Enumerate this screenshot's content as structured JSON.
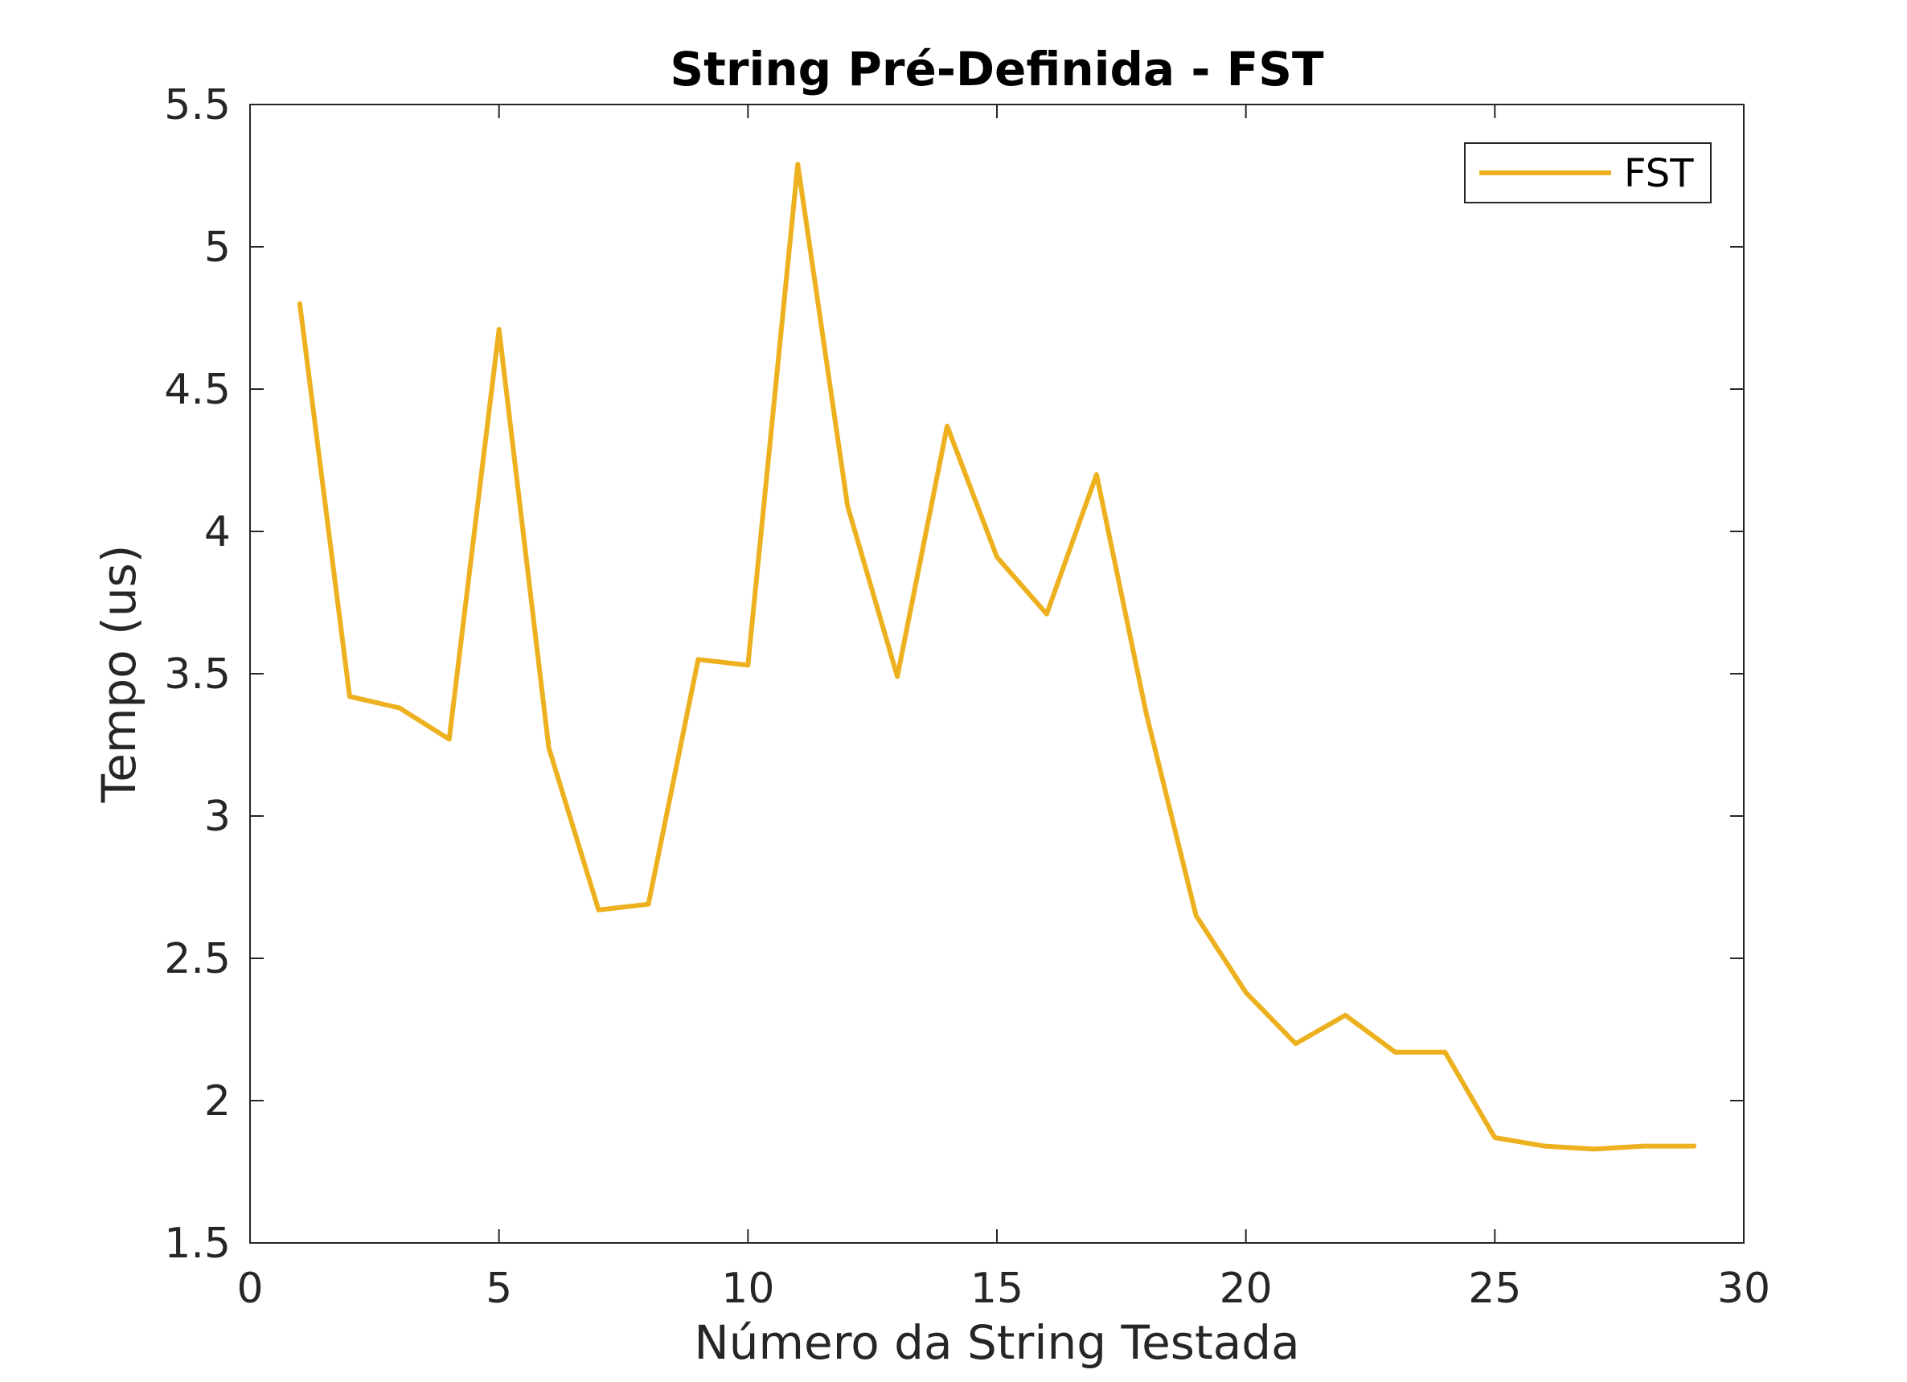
{
  "chart_data": {
    "type": "line",
    "title": "String Pré-Definida - FST",
    "xlabel": "Número da String Testada",
    "ylabel": "Tempo (us)",
    "xlim": [
      0,
      30
    ],
    "ylim": [
      1.5,
      5.5
    ],
    "xticks": [
      0,
      5,
      10,
      15,
      20,
      25,
      30
    ],
    "xtick_labels": [
      "0",
      "5",
      "10",
      "15",
      "20",
      "25",
      "30"
    ],
    "yticks": [
      1.5,
      2,
      2.5,
      3,
      3.5,
      4,
      4.5,
      5,
      5.5
    ],
    "ytick_labels": [
      "1.5",
      "2",
      "2.5",
      "3",
      "3.5",
      "4",
      "4.5",
      "5",
      "5.5"
    ],
    "grid": false,
    "legend_position": "top-right",
    "series": [
      {
        "name": "FST",
        "color": "#EDB120",
        "x": [
          1,
          2,
          3,
          4,
          5,
          6,
          7,
          8,
          9,
          10,
          11,
          12,
          13,
          14,
          15,
          16,
          17,
          18,
          19,
          20,
          21,
          22,
          23,
          24,
          25,
          26,
          27,
          28,
          29
        ],
        "y": [
          4.8,
          3.42,
          3.38,
          3.27,
          4.71,
          3.24,
          2.67,
          2.69,
          3.55,
          3.53,
          5.29,
          4.09,
          3.49,
          4.37,
          3.91,
          3.71,
          4.2,
          3.36,
          2.65,
          2.38,
          2.2,
          2.3,
          2.17,
          2.17,
          1.87,
          1.84,
          1.83,
          1.84,
          1.84
        ]
      }
    ]
  }
}
